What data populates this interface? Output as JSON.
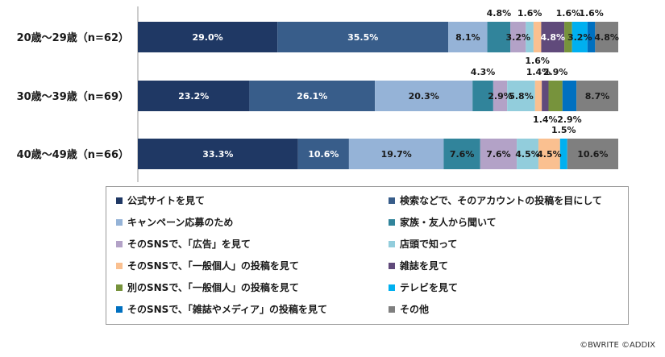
{
  "chart_data": {
    "type": "bar",
    "orientation": "horizontal",
    "stacked": true,
    "normalized_percent": true,
    "categories": [
      "20歳～29歳（n=62）",
      "30歳～39歳（n=69）",
      "40歳～49歳（n=66）"
    ],
    "series": [
      {
        "name": "公式サイトを見て",
        "color": "#1f3864",
        "values": [
          29.0,
          23.2,
          33.3
        ]
      },
      {
        "name": "検索などで、そのアカウントの投稿を目にして",
        "color": "#385d8a",
        "values": [
          35.5,
          26.1,
          10.6
        ]
      },
      {
        "name": "キャンペーン応募のため",
        "color": "#95b3d7",
        "values": [
          8.1,
          20.3,
          19.7
        ]
      },
      {
        "name": "家族・友人から聞いて",
        "color": "#31849b",
        "values": [
          4.8,
          4.3,
          7.6
        ]
      },
      {
        "name": "そのSNSで、「広告」を見て",
        "color": "#b3a2c7",
        "values": [
          3.2,
          2.9,
          7.6
        ]
      },
      {
        "name": "店頭で知って",
        "color": "#92cddc",
        "values": [
          1.6,
          5.8,
          4.5
        ]
      },
      {
        "name": "そのSNSで、「一般個人」の投稿を見て",
        "color": "#fac090",
        "values": [
          1.6,
          1.4,
          4.5
        ]
      },
      {
        "name": "雑誌を見て",
        "color": "#604a7b",
        "values": [
          4.8,
          1.4,
          0
        ]
      },
      {
        "name": "別のSNSで、「一般個人」の投稿を見て",
        "color": "#77933c",
        "values": [
          1.6,
          2.9,
          0
        ]
      },
      {
        "name": "テレビを見て",
        "color": "#00b0f0",
        "values": [
          3.2,
          0,
          1.5
        ]
      },
      {
        "name": "そのSNSで、「雑誌やメディア」の投稿を見て",
        "color": "#0070c0",
        "values": [
          1.6,
          2.9,
          0
        ]
      },
      {
        "name": "その他",
        "color": "#7f7f7f",
        "values": [
          4.8,
          8.7,
          10.6
        ]
      }
    ],
    "data_labels": [
      [
        {
          "text": "29.0%",
          "series": 0,
          "pos": "in",
          "color": "#ffffff"
        },
        {
          "text": "35.5%",
          "series": 1,
          "pos": "in",
          "color": "#ffffff"
        },
        {
          "text": "8.1%",
          "series": 2,
          "pos": "in",
          "color": "#1a1a1a"
        },
        {
          "text": "4.8%",
          "series": 3,
          "pos": "above"
        },
        {
          "text": "3.2%",
          "series": 4,
          "pos": "in",
          "color": "#1a1a1a"
        },
        {
          "text": "1.6%",
          "series": 5,
          "pos": "above"
        },
        {
          "text": "1.6%",
          "series": 6,
          "pos": "below"
        },
        {
          "text": "4.8%",
          "series": 7,
          "pos": "in",
          "color": "#ffffff"
        },
        {
          "text": "1.6%",
          "series": 8,
          "pos": "above"
        },
        {
          "text": "3.2%",
          "series": 9,
          "pos": "in",
          "color": "#1a1a1a"
        },
        {
          "text": "1.6%",
          "series": 10,
          "pos": "above"
        },
        {
          "text": "4.8%",
          "series": 11,
          "pos": "in",
          "color": "#1a1a1a"
        }
      ],
      [
        {
          "text": "23.2%",
          "series": 0,
          "pos": "in",
          "color": "#ffffff"
        },
        {
          "text": "26.1%",
          "series": 1,
          "pos": "in",
          "color": "#ffffff"
        },
        {
          "text": "20.3%",
          "series": 2,
          "pos": "in",
          "color": "#1a1a1a"
        },
        {
          "text": "4.3%",
          "series": 3,
          "pos": "above"
        },
        {
          "text": "2.9%",
          "series": 4,
          "pos": "in",
          "color": "#1a1a1a"
        },
        {
          "text": "5.8%",
          "series": 5,
          "pos": "in",
          "color": "#1a1a1a"
        },
        {
          "text": "1.4%",
          "series": 6,
          "pos": "above"
        },
        {
          "text": "1.4%",
          "series": 7,
          "pos": "below"
        },
        {
          "text": "2.9%",
          "series": 8,
          "pos": "above"
        },
        {
          "text": "2.9%",
          "series": 10,
          "pos": "below"
        },
        {
          "text": "8.7%",
          "series": 11,
          "pos": "in",
          "color": "#1a1a1a"
        }
      ],
      [
        {
          "text": "33.3%",
          "series": 0,
          "pos": "in",
          "color": "#ffffff"
        },
        {
          "text": "10.6%",
          "series": 1,
          "pos": "in",
          "color": "#ffffff"
        },
        {
          "text": "19.7%",
          "series": 2,
          "pos": "in",
          "color": "#1a1a1a"
        },
        {
          "text": "7.6%",
          "series": 3,
          "pos": "in",
          "color": "#1a1a1a"
        },
        {
          "text": "7.6%",
          "series": 4,
          "pos": "in",
          "color": "#1a1a1a"
        },
        {
          "text": "4.5%",
          "series": 5,
          "pos": "in",
          "color": "#1a1a1a"
        },
        {
          "text": "4.5%",
          "series": 6,
          "pos": "in",
          "color": "#1a1a1a"
        },
        {
          "text": "1.5%",
          "series": 9,
          "pos": "above"
        },
        {
          "text": "10.6%",
          "series": 11,
          "pos": "in",
          "color": "#1a1a1a"
        }
      ]
    ],
    "legend_position": "bottom",
    "grid": false
  },
  "copyright": "©BWRITE ©ADDIX"
}
